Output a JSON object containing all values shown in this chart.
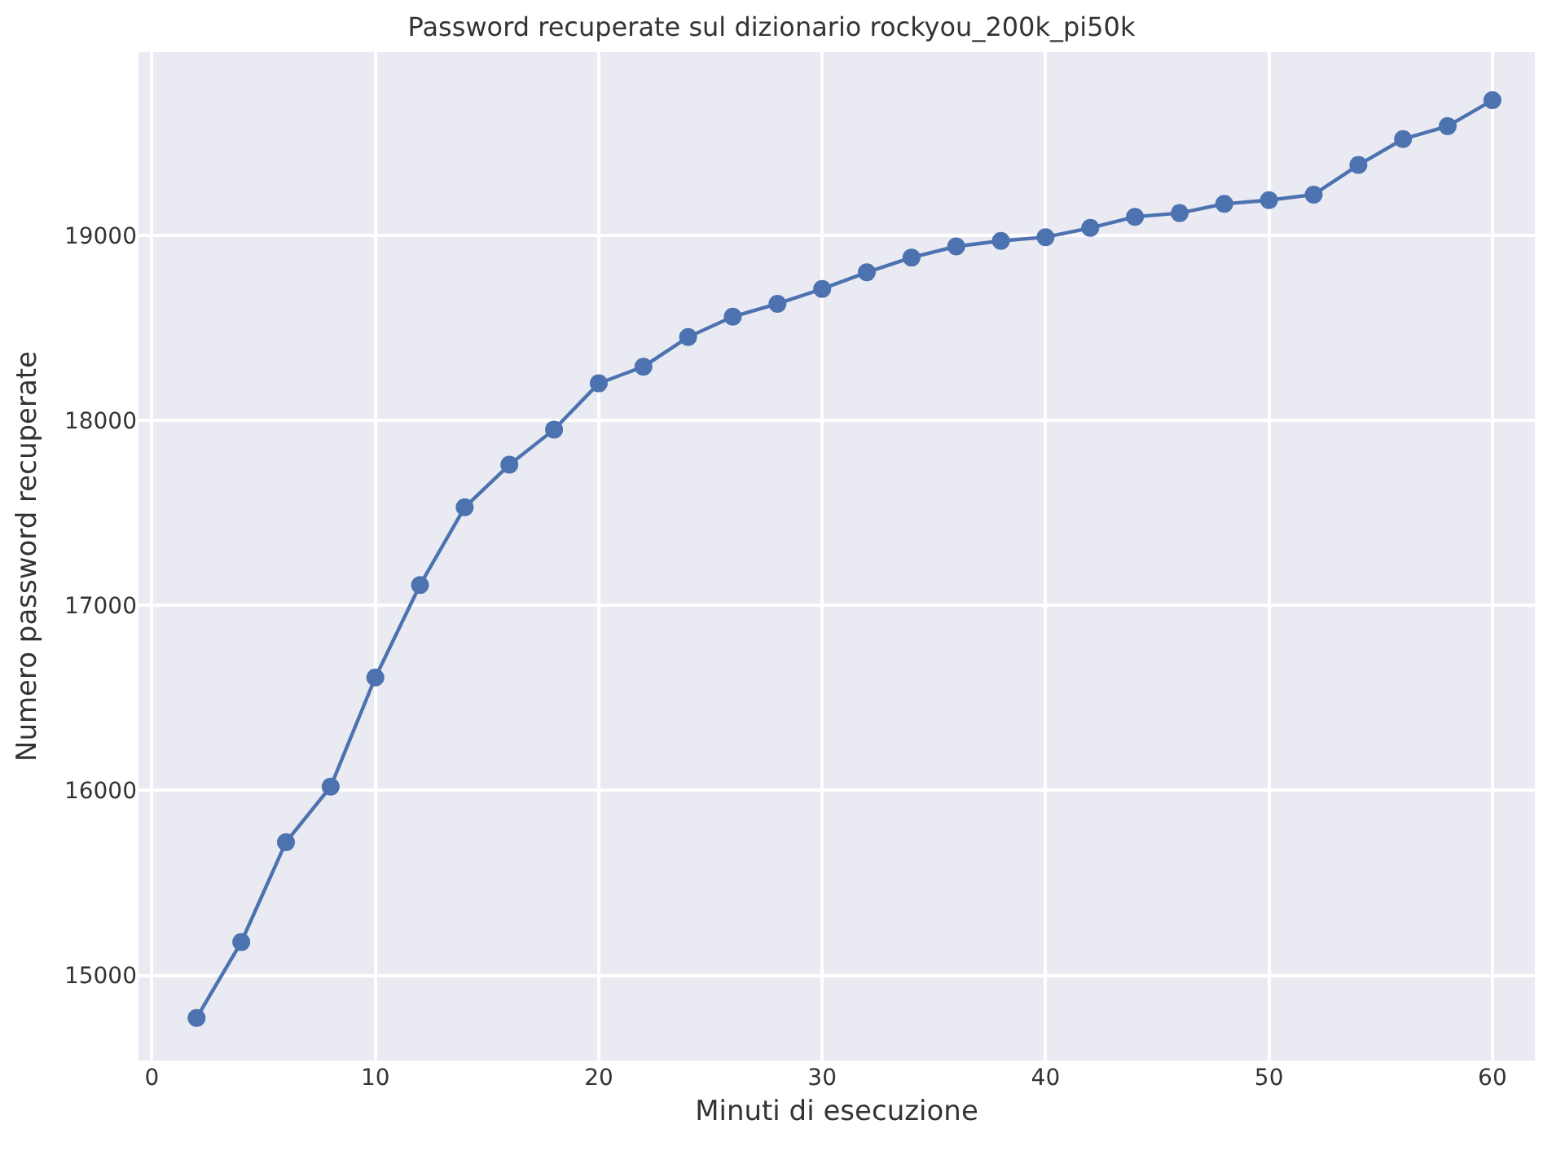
{
  "chart_data": {
    "type": "line",
    "title": "Password recuperate sul dizionario rockyou_200k_pi50k",
    "xlabel": "Minuti di esecuzione",
    "ylabel": "Numero password recuperate",
    "x": [
      2,
      4,
      6,
      8,
      10,
      12,
      14,
      16,
      18,
      20,
      22,
      24,
      26,
      28,
      30,
      32,
      34,
      36,
      38,
      40,
      42,
      44,
      46,
      48,
      50,
      52,
      54,
      56,
      58,
      60
    ],
    "series": [
      {
        "color": "#4c72b0",
        "values": [
          14770,
          15180,
          15720,
          16020,
          16610,
          17110,
          17530,
          17760,
          17950,
          18200,
          18290,
          18450,
          18560,
          18630,
          18710,
          18800,
          18880,
          18940,
          18970,
          18990,
          19040,
          19100,
          19120,
          19170,
          19190,
          19220,
          19380,
          19520,
          19590,
          19730
        ]
      }
    ],
    "xlim": [
      -0.6,
      61.9
    ],
    "xticks": [
      0,
      10,
      20,
      30,
      40,
      50,
      60
    ],
    "ylim": [
      14540,
      19990
    ],
    "yticks": [
      15000,
      16000,
      17000,
      18000,
      19000
    ],
    "grid": true,
    "marker": "circle",
    "line_style": "solid",
    "legend": false
  }
}
